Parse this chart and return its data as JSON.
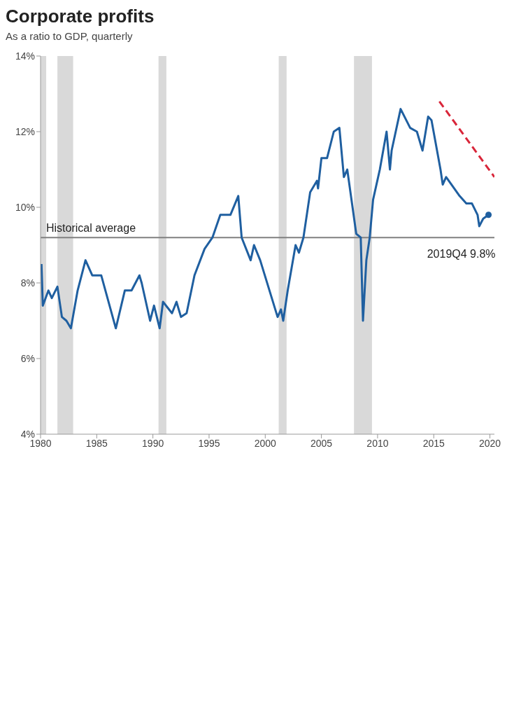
{
  "chart_data": {
    "type": "line",
    "title": "Corporate profits",
    "subtitle": "As a ratio to GDP, quarterly",
    "xlim": [
      1980,
      2020.4
    ],
    "xticks": [
      1980,
      1985,
      1990,
      1995,
      2000,
      2005,
      2010,
      2015,
      2020
    ],
    "ylim": [
      4,
      14
    ],
    "yticks": [
      {
        "value": 4,
        "label": "4%"
      },
      {
        "value": 6,
        "label": "6%"
      },
      {
        "value": 8,
        "label": "8%"
      },
      {
        "value": 10,
        "label": "10%"
      },
      {
        "value": 12,
        "label": "12%"
      },
      {
        "value": 14,
        "label": "14%"
      }
    ],
    "grid": false,
    "legend": false,
    "marker": "none",
    "line_style": "solid",
    "series": [
      {
        "color": "#1f5fa0",
        "x": [
          1980.08,
          1980.2,
          1980.7,
          1981,
          1981.5,
          1981.9,
          1982.3,
          1982.7,
          1983.3,
          1984,
          1984.6,
          1985.4,
          1986.7,
          1987.5,
          1988.1,
          1988.8,
          1989,
          1989.75,
          1990.1,
          1990.6,
          1990.9,
          1991.7,
          1992.1,
          1992.5,
          1993,
          1993.7,
          1994.6,
          1995.3,
          1996,
          1996.9,
          1997.6,
          1997.9,
          1998.7,
          1999,
          1999.55,
          2001.1,
          2001.4,
          2001.6,
          2002,
          2002.7,
          2003,
          2003.4,
          2004,
          2004.6,
          2004.7,
          2005,
          2005.5,
          2006.1,
          2006.6,
          2007,
          2007.3,
          2008.1,
          2008.5,
          2008.7,
          2009,
          2009.3,
          2009.6,
          2010.2,
          2010.8,
          2011.1,
          2011.25,
          2012.05,
          2012.9,
          2013.5,
          2014,
          2014.5,
          2014.8,
          2015.6,
          2015.8,
          2016.1,
          2017.3,
          2017.9,
          2018.4,
          2018.9,
          2019.05,
          2019.4,
          2019.875
        ],
        "values": [
          8.5,
          7.4,
          7.8,
          7.6,
          7.9,
          7.1,
          7,
          6.8,
          7.8,
          8.6,
          8.2,
          8.2,
          6.8,
          7.8,
          7.8,
          8.2,
          8,
          7,
          7.4,
          6.8,
          7.5,
          7.2,
          7.5,
          7.1,
          7.2,
          8.2,
          8.9,
          9.2,
          9.8,
          9.8,
          10.3,
          9.2,
          8.6,
          9,
          8.6,
          7.1,
          7.3,
          7,
          7.8,
          9,
          8.8,
          9.2,
          10.4,
          10.7,
          10.5,
          11.3,
          11.3,
          12,
          12.1,
          10.8,
          11,
          9.3,
          9.2,
          7,
          8.6,
          9.2,
          10.2,
          11,
          12,
          11,
          11.5,
          12.6,
          12.1,
          12,
          11.5,
          12.4,
          12.3,
          11,
          10.6,
          10.8,
          10.3,
          10.1,
          10.1,
          9.8,
          9.5,
          9.7,
          9.8
        ]
      },
      {
        "type": "scatter",
        "color": "#1f5fa0",
        "marker": "circle",
        "x": [
          2019.875
        ],
        "values": [
          9.8
        ]
      },
      {
        "color": "#d9263a",
        "line_style": "dashed",
        "x": [
          2015.5,
          2020.4
        ],
        "values": [
          12.8,
          10.8
        ]
      }
    ],
    "ref_lines": [
      {
        "axis": "y",
        "value": 9.2,
        "label": "Historical average",
        "color": "#808080"
      }
    ],
    "bands": [
      {
        "axis": "x",
        "from": 1980,
        "to": 1980.5,
        "color": "#d9d9d9"
      },
      {
        "axis": "x",
        "from": 1981.5,
        "to": 1982.9,
        "color": "#d9d9d9"
      },
      {
        "axis": "x",
        "from": 1990.5,
        "to": 1991.2,
        "color": "#d9d9d9"
      },
      {
        "axis": "x",
        "from": 2001.2,
        "to": 2001.9,
        "color": "#d9d9d9"
      },
      {
        "axis": "x",
        "from": 2007.9,
        "to": 2009.5,
        "color": "#d9d9d9"
      }
    ],
    "annotations": [
      {
        "text": "2019Q4 9.8%",
        "x": 2019.875,
        "y": 9.8
      }
    ]
  }
}
